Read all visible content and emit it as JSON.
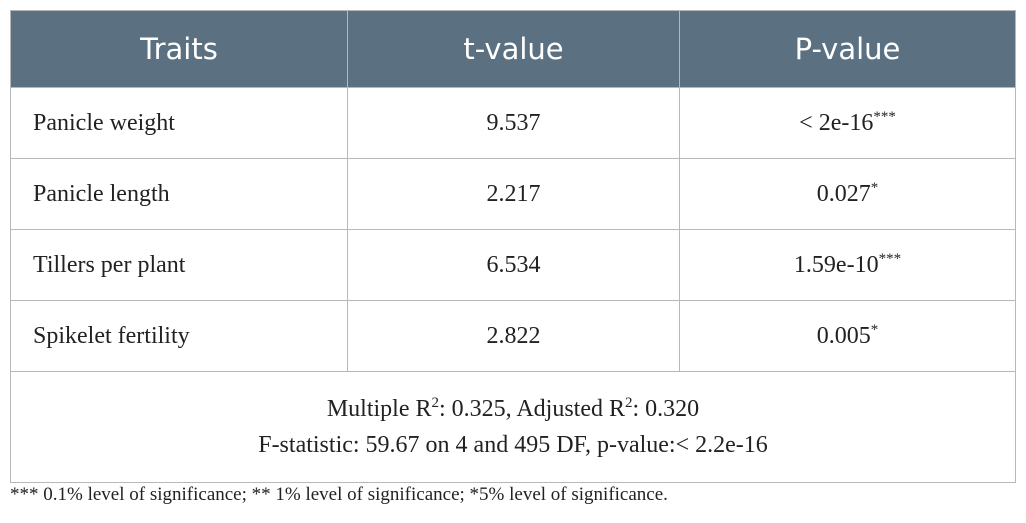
{
  "table": {
    "header": [
      "Traits",
      "t-value",
      "P-value"
    ],
    "rows": [
      [
        "Panicle weight",
        "9.537",
        {
          "text": "< 2e-16",
          "sup": "***"
        }
      ],
      [
        "Panicle length",
        "2.217",
        {
          "text": "0.027",
          "sup": "*"
        }
      ],
      [
        "Tillers per plant",
        "6.534",
        {
          "text": "1.59e-10",
          "sup": "***"
        }
      ],
      [
        "Spikelet fertility",
        "2.822",
        {
          "text": "0.005",
          "sup": "*"
        }
      ]
    ],
    "summary": [
      [
        {
          "text": "Multiple R"
        },
        {
          "sup": "2"
        },
        {
          "text": ": 0.325, Adjusted R"
        },
        {
          "sup": "2"
        },
        {
          "text": ": 0.320"
        }
      ],
      [
        {
          "text": "F-statistic: 59.67 on 4 and 495 DF, p-value:< 2.2e-16"
        }
      ]
    ]
  },
  "footnote": "*** 0.1% level of significance; ** 1% level of significance; *5% level of significance."
}
